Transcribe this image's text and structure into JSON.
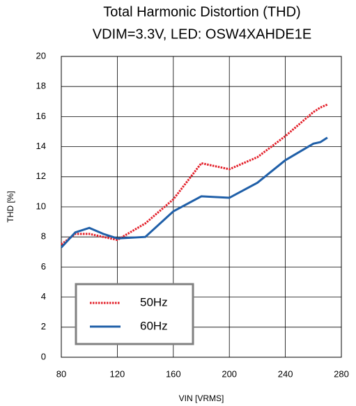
{
  "chart_data": {
    "type": "line",
    "title": "Total Harmonic Distortion (THD)",
    "subtitle": "VDIM=3.3V, LED: OSW4XAHDE1E",
    "xlabel": "VIN [VRMS]",
    "ylabel": "THD [%]",
    "x": [
      80,
      90,
      100,
      110,
      120,
      140,
      160,
      180,
      200,
      220,
      240,
      260,
      265,
      270
    ],
    "series": [
      {
        "name": "50Hz",
        "color": "#e3202a",
        "style": "dotted",
        "values": [
          7.5,
          8.2,
          8.2,
          8.0,
          7.8,
          8.9,
          10.5,
          12.9,
          12.5,
          13.3,
          14.7,
          16.3,
          16.6,
          16.8
        ]
      },
      {
        "name": "60Hz",
        "color": "#1f5fa8",
        "style": "solid",
        "values": [
          7.3,
          8.3,
          8.6,
          8.2,
          7.9,
          8.0,
          9.7,
          10.7,
          10.6,
          11.6,
          13.1,
          14.2,
          14.3,
          14.6
        ]
      }
    ],
    "xlim": [
      80,
      280
    ],
    "xticks": [
      80,
      120,
      160,
      200,
      240,
      280
    ],
    "ylim": [
      0,
      20
    ],
    "yticks": [
      0,
      2,
      4,
      6,
      8,
      10,
      12,
      14,
      16,
      18,
      20
    ],
    "grid": true,
    "legend": "lower left"
  }
}
